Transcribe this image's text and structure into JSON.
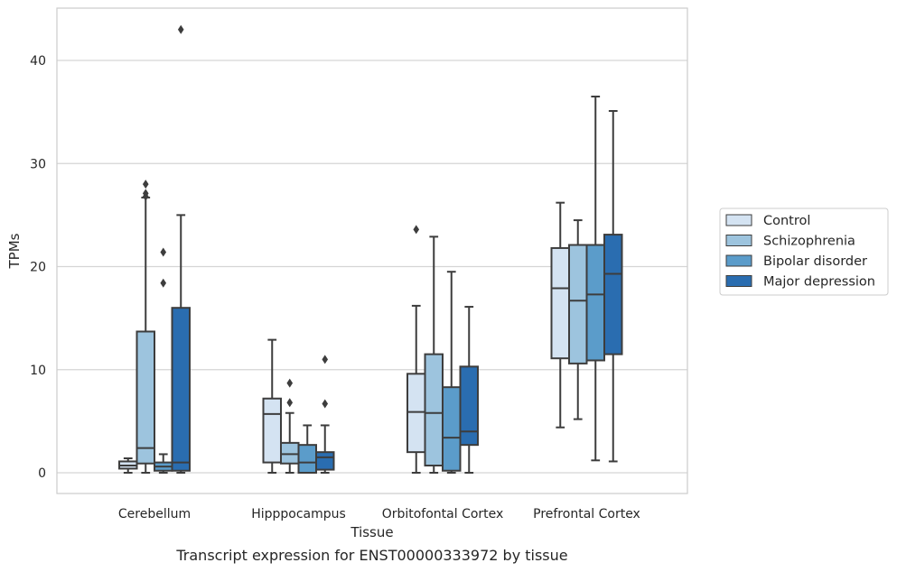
{
  "chart_data": {
    "type": "box",
    "title": "",
    "caption": "Transcript expression for ENST00000333972 by tissue",
    "xlabel": "Tissue",
    "ylabel": "TPMs",
    "ylim": [
      -2,
      45
    ],
    "yticks": [
      0,
      10,
      20,
      30,
      40
    ],
    "grid": "horizontal",
    "legend_position": "right",
    "categories": [
      "Cerebellum",
      "Hipppocampus",
      "Orbitofontal Cortex",
      "Prefrontal Cortex"
    ],
    "series": [
      {
        "name": "Control",
        "color": "#d4e3f2",
        "boxes": [
          {
            "min": 0.0,
            "q1": 0.4,
            "median": 0.7,
            "q3": 1.1,
            "max": 1.4,
            "outliers": []
          },
          {
            "min": 0.0,
            "q1": 1.0,
            "median": 5.7,
            "q3": 7.2,
            "max": 12.9,
            "outliers": []
          },
          {
            "min": 0.0,
            "q1": 2.0,
            "median": 5.9,
            "q3": 9.6,
            "max": 16.2,
            "outliers": [
              23.6
            ]
          },
          {
            "min": 4.4,
            "q1": 11.1,
            "median": 17.9,
            "q3": 21.8,
            "max": 26.2,
            "outliers": []
          }
        ]
      },
      {
        "name": "Schizophrenia",
        "color": "#9dc4de",
        "boxes": [
          {
            "min": 0.0,
            "q1": 0.9,
            "median": 2.4,
            "q3": 13.7,
            "max": 26.7,
            "outliers": [
              26.8,
              27.1,
              28.0
            ]
          },
          {
            "min": 0.0,
            "q1": 0.9,
            "median": 1.8,
            "q3": 2.9,
            "max": 5.8,
            "outliers": [
              6.8,
              8.7
            ]
          },
          {
            "min": 0.0,
            "q1": 0.7,
            "median": 5.8,
            "q3": 11.5,
            "max": 22.9,
            "outliers": []
          },
          {
            "min": 5.2,
            "q1": 10.6,
            "median": 16.7,
            "q3": 22.1,
            "max": 24.5,
            "outliers": []
          }
        ]
      },
      {
        "name": "Bipolar disorder",
        "color": "#5b9cca",
        "boxes": [
          {
            "min": 0.0,
            "q1": 0.2,
            "median": 0.6,
            "q3": 1.0,
            "max": 1.8,
            "outliers": [
              18.4,
              21.4
            ]
          },
          {
            "min": 0.0,
            "q1": 0.0,
            "median": 1.0,
            "q3": 2.7,
            "max": 4.6,
            "outliers": []
          },
          {
            "min": 0.0,
            "q1": 0.2,
            "median": 3.4,
            "q3": 8.3,
            "max": 19.5,
            "outliers": []
          },
          {
            "min": 1.2,
            "q1": 10.9,
            "median": 17.3,
            "q3": 22.1,
            "max": 36.5,
            "outliers": []
          }
        ]
      },
      {
        "name": "Major depression",
        "color": "#2a6db0",
        "boxes": [
          {
            "min": 0.0,
            "q1": 0.2,
            "median": 1.0,
            "q3": 16.0,
            "max": 25.0,
            "outliers": [
              43.0
            ]
          },
          {
            "min": 0.0,
            "q1": 0.3,
            "median": 1.5,
            "q3": 2.0,
            "max": 4.6,
            "outliers": [
              6.7,
              11.0
            ]
          },
          {
            "min": 0.0,
            "q1": 2.7,
            "median": 4.0,
            "q3": 10.3,
            "max": 16.1,
            "outliers": []
          },
          {
            "min": 1.1,
            "q1": 11.5,
            "median": 19.3,
            "q3": 23.1,
            "max": 35.1,
            "outliers": []
          }
        ]
      }
    ]
  }
}
